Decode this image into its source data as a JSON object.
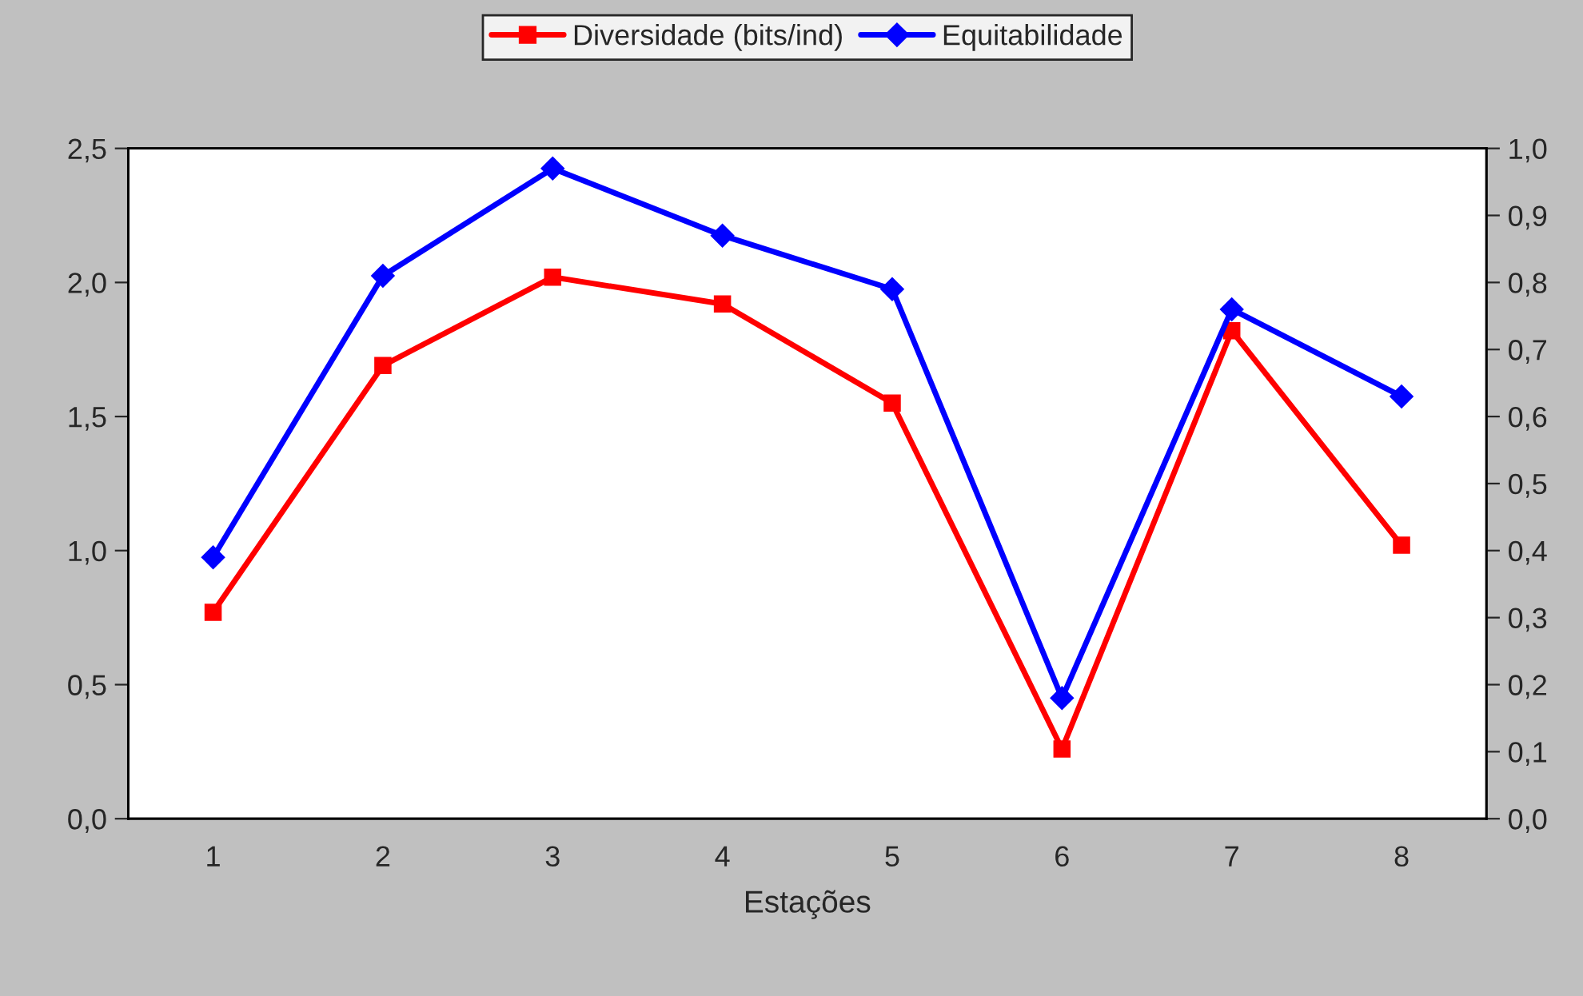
{
  "chart_data": {
    "type": "line",
    "xlabel": "Estações",
    "categories": [
      "1",
      "2",
      "3",
      "4",
      "5",
      "6",
      "7",
      "8"
    ],
    "series": [
      {
        "name": "Diversidade (bits/ind)",
        "color": "#ff0000",
        "marker": "square",
        "values": [
          0.77,
          1.69,
          2.02,
          1.92,
          1.55,
          0.26,
          1.82,
          1.02
        ]
      },
      {
        "name": "Equitabilidade",
        "color": "#0000ff",
        "marker": "diamond",
        "axis": "y2",
        "values": [
          0.39,
          0.81,
          0.97,
          0.87,
          0.79,
          0.18,
          0.76,
          0.63
        ]
      }
    ],
    "ylim": [
      0,
      2.5
    ],
    "yticks": [
      {
        "value": 0,
        "label": "0,0"
      },
      {
        "value": 0.5,
        "label": "0,5"
      },
      {
        "value": 1,
        "label": "1,0"
      },
      {
        "value": 1.5,
        "label": "1,5"
      },
      {
        "value": 2,
        "label": "2,0"
      },
      {
        "value": 2.5,
        "label": "2,5"
      }
    ],
    "y2lim": [
      0,
      1
    ],
    "y2ticks": [
      {
        "value": 0,
        "label": "0,0"
      },
      {
        "value": 0.1,
        "label": "0,1"
      },
      {
        "value": 0.2,
        "label": "0,2"
      },
      {
        "value": 0.3,
        "label": "0,3"
      },
      {
        "value": 0.4,
        "label": "0,4"
      },
      {
        "value": 0.5,
        "label": "0,5"
      },
      {
        "value": 0.6,
        "label": "0,6"
      },
      {
        "value": 0.7,
        "label": "0,7"
      },
      {
        "value": 0.8,
        "label": "0,8"
      },
      {
        "value": 0.9,
        "label": "0,9"
      },
      {
        "value": 1,
        "label": "1,0"
      }
    ],
    "legend": "top",
    "grid": false,
    "line_style": "solid"
  }
}
